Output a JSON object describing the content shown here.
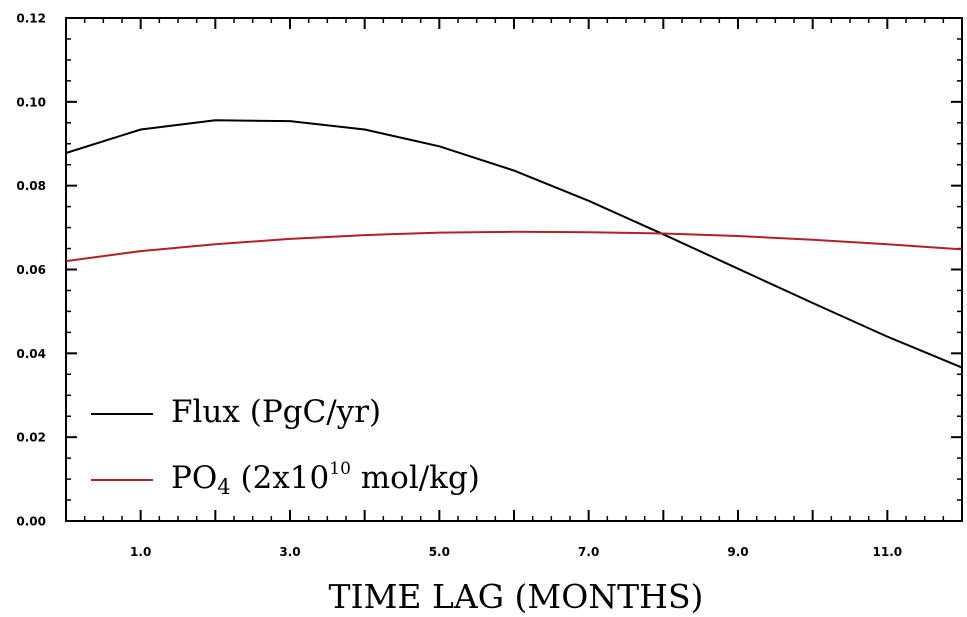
{
  "chart_data": {
    "type": "line",
    "title": "",
    "xlabel": "TIME LAG (MONTHS)",
    "ylabel": "",
    "xlim": [
      0,
      12
    ],
    "ylim": [
      0,
      0.12
    ],
    "x_ticks": [
      1,
      3,
      5,
      7,
      9,
      11
    ],
    "x_tick_labels": [
      "1.0",
      "3.0",
      "5.0",
      "7.0",
      "9.0",
      "11.0"
    ],
    "y_ticks": [
      0,
      0.02,
      0.04,
      0.06,
      0.08,
      0.1,
      0.12
    ],
    "y_tick_labels": [
      "0.00",
      "0.02",
      "0.04",
      "0.06",
      "0.08",
      "0.10",
      "0.12"
    ],
    "grid": false,
    "legend_position": "bottom-left",
    "x": [
      0,
      1,
      2,
      3,
      4,
      5,
      6,
      7,
      8,
      9,
      10,
      11,
      12
    ],
    "series": [
      {
        "name": "Flux (PgC/yr)",
        "color": "#000000",
        "values": [
          0.0878,
          0.0934,
          0.0956,
          0.0954,
          0.0934,
          0.0894,
          0.0836,
          0.0764,
          0.0684,
          0.0602,
          0.052,
          0.044,
          0.0366
        ]
      },
      {
        "name": "PO4 (2x10^10 mol/kg)",
        "color": "#b22222",
        "values": [
          0.062,
          0.0644,
          0.066,
          0.0673,
          0.0682,
          0.0688,
          0.069,
          0.0689,
          0.0686,
          0.068,
          0.0671,
          0.066,
          0.0648
        ]
      }
    ]
  },
  "legend": {
    "flux_label": "Flux (PgC/yr)",
    "po4_prefix": "PO",
    "po4_subscript": "4",
    "po4_mid": " (2x10",
    "po4_superscript": "10",
    "po4_suffix": " mol/kg)"
  }
}
